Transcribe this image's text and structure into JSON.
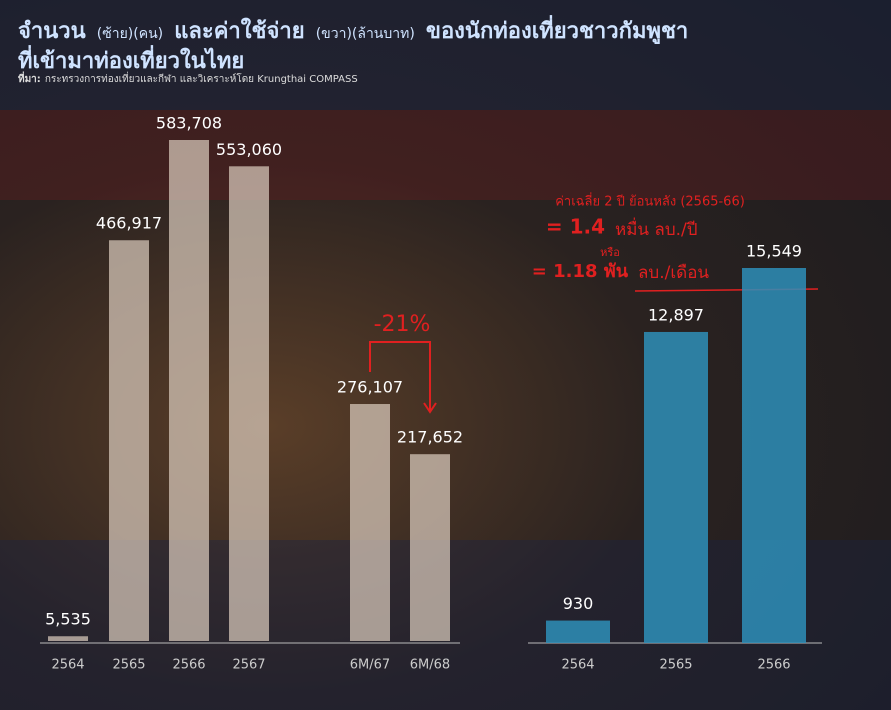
{
  "title": {
    "line1": [
      {
        "text": "จำนวน",
        "size": "big"
      },
      {
        "text": "(ซ้าย)(คน)",
        "size": "small"
      },
      {
        "text": "และค่าใช้จ่าย",
        "size": "big"
      },
      {
        "text": "(ขวา)(ล้านบาท)",
        "size": "small"
      },
      {
        "text": "ของนักท่องเที่ยวชาวกัมพูชา",
        "size": "big"
      }
    ],
    "line2": "ที่เข้ามาท่องเที่ยวในไทย"
  },
  "source": {
    "label": "ที่มา:",
    "text": "กระทรวงการท่องเที่ยวและกีฬา และวิเคราะห์โดย Krungthai COMPASS"
  },
  "chart_data": [
    {
      "type": "bar",
      "categories": [
        "2564",
        "2565",
        "2566",
        "2567",
        "6M/67",
        "6M/68"
      ],
      "values": [
        5535,
        466917,
        583708,
        553060,
        276107,
        217652
      ],
      "value_labels": [
        "5,535",
        "466,917",
        "583,708",
        "553,060",
        "276,107",
        "217,652"
      ],
      "color": "#d9cbbd",
      "annotation": "-21%"
    },
    {
      "type": "bar",
      "categories": [
        "2564",
        "2565",
        "2566"
      ],
      "values": [
        930,
        12897,
        15549
      ],
      "value_labels": [
        "930",
        "12,897",
        "15,549"
      ],
      "color": "#2e8fba",
      "annotations": [
        "ค่าเฉลี่ย 2 ปี ย้อนหลัง (2565-66)",
        "= 1.4",
        "หมื่น ลบ./ปี",
        "หรือ",
        "= 1.18 พัน",
        "ลบ./เดือน"
      ]
    }
  ]
}
